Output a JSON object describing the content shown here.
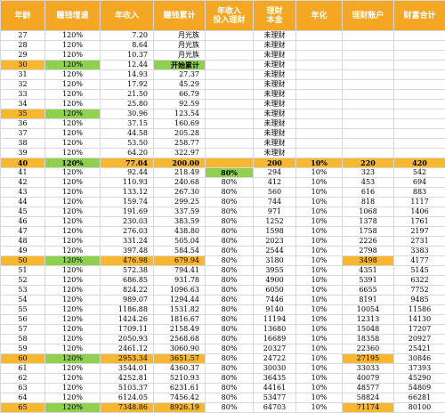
{
  "headers": {
    "age": "年龄",
    "growth": "赚钱增速",
    "income": "年收入",
    "cumulative": "赚钱累计",
    "invest_l1": "年收入",
    "invest_l2": "投入理财",
    "principal_l1": "理财",
    "principal_l2": "本金",
    "rate": "年化",
    "account": "理财账户",
    "wealth": "财富合计"
  },
  "rows": [
    {
      "age": "27",
      "growth": "120%",
      "income": "7.20",
      "cum": "月光族",
      "invest": "",
      "principal": "未理财",
      "rate": "",
      "account": "",
      "wealth": ""
    },
    {
      "age": "28",
      "growth": "120%",
      "income": "8.64",
      "cum": "月光族",
      "invest": "",
      "principal": "未理财",
      "rate": "",
      "account": "",
      "wealth": ""
    },
    {
      "age": "29",
      "growth": "120%",
      "income": "10.37",
      "cum": "月光族",
      "invest": "",
      "principal": "未理财",
      "rate": "",
      "account": "",
      "wealth": ""
    },
    {
      "age": "30",
      "growth": "120%",
      "income": "12.44",
      "cum": "开始累计",
      "invest": "",
      "principal": "未理财",
      "rate": "",
      "account": "",
      "wealth": ""
    },
    {
      "age": "31",
      "growth": "120%",
      "income": "14.93",
      "cum": "27.37",
      "invest": "",
      "principal": "未理财",
      "rate": "",
      "account": "",
      "wealth": ""
    },
    {
      "age": "32",
      "growth": "120%",
      "income": "17.92",
      "cum": "45.29",
      "invest": "",
      "principal": "未理财",
      "rate": "",
      "account": "",
      "wealth": ""
    },
    {
      "age": "33",
      "growth": "120%",
      "income": "21.50",
      "cum": "66.79",
      "invest": "",
      "principal": "未理财",
      "rate": "",
      "account": "",
      "wealth": ""
    },
    {
      "age": "34",
      "growth": "120%",
      "income": "25.80",
      "cum": "92.59",
      "invest": "",
      "principal": "未理财",
      "rate": "",
      "account": "",
      "wealth": ""
    },
    {
      "age": "35",
      "growth": "120%",
      "income": "30.96",
      "cum": "123.54",
      "invest": "",
      "principal": "未理财",
      "rate": "",
      "account": "",
      "wealth": ""
    },
    {
      "age": "36",
      "growth": "120%",
      "income": "37.15",
      "cum": "160.69",
      "invest": "",
      "principal": "未理财",
      "rate": "",
      "account": "",
      "wealth": ""
    },
    {
      "age": "37",
      "growth": "120%",
      "income": "44.58",
      "cum": "205.28",
      "invest": "",
      "principal": "未理财",
      "rate": "",
      "account": "",
      "wealth": ""
    },
    {
      "age": "38",
      "growth": "120%",
      "income": "53.50",
      "cum": "258.77",
      "invest": "",
      "principal": "未理财",
      "rate": "",
      "account": "",
      "wealth": ""
    },
    {
      "age": "39",
      "growth": "120%",
      "income": "64.20",
      "cum": "322.97",
      "invest": "",
      "principal": "未理财",
      "rate": "",
      "account": "",
      "wealth": ""
    },
    {
      "age": "40",
      "growth": "120%",
      "income": "77.04",
      "cum": "200.00",
      "invest": "",
      "principal": "200",
      "rate": "10%",
      "account": "220",
      "wealth": "420"
    },
    {
      "age": "41",
      "growth": "120%",
      "income": "92.44",
      "cum": "218.49",
      "invest": "80%",
      "principal": "294",
      "rate": "10%",
      "account": "323",
      "wealth": "542"
    },
    {
      "age": "42",
      "growth": "120%",
      "income": "110.93",
      "cum": "240.68",
      "invest": "80%",
      "principal": "412",
      "rate": "10%",
      "account": "453",
      "wealth": "694"
    },
    {
      "age": "43",
      "growth": "120%",
      "income": "133.12",
      "cum": "267.30",
      "invest": "80%",
      "principal": "560",
      "rate": "10%",
      "account": "616",
      "wealth": "883"
    },
    {
      "age": "44",
      "growth": "120%",
      "income": "159.74",
      "cum": "299.25",
      "invest": "80%",
      "principal": "744",
      "rate": "10%",
      "account": "818",
      "wealth": "1117"
    },
    {
      "age": "45",
      "growth": "120%",
      "income": "191.69",
      "cum": "337.59",
      "invest": "80%",
      "principal": "971",
      "rate": "10%",
      "account": "1068",
      "wealth": "1406"
    },
    {
      "age": "46",
      "growth": "120%",
      "income": "230.03",
      "cum": "383.59",
      "invest": "80%",
      "principal": "1252",
      "rate": "10%",
      "account": "1378",
      "wealth": "1761"
    },
    {
      "age": "47",
      "growth": "120%",
      "income": "276.03",
      "cum": "438.80",
      "invest": "80%",
      "principal": "1598",
      "rate": "10%",
      "account": "1758",
      "wealth": "2197"
    },
    {
      "age": "48",
      "growth": "120%",
      "income": "331.24",
      "cum": "505.04",
      "invest": "80%",
      "principal": "2023",
      "rate": "10%",
      "account": "2226",
      "wealth": "2731"
    },
    {
      "age": "49",
      "growth": "120%",
      "income": "397.48",
      "cum": "584.54",
      "invest": "80%",
      "principal": "2544",
      "rate": "10%",
      "account": "2798",
      "wealth": "3383"
    },
    {
      "age": "50",
      "growth": "120%",
      "income": "476.98",
      "cum": "679.94",
      "invest": "80%",
      "principal": "3180",
      "rate": "10%",
      "account": "3498",
      "wealth": "4177"
    },
    {
      "age": "51",
      "growth": "120%",
      "income": "572.38",
      "cum": "794.41",
      "invest": "80%",
      "principal": "3955",
      "rate": "10%",
      "account": "4351",
      "wealth": "5145"
    },
    {
      "age": "52",
      "growth": "120%",
      "income": "686.85",
      "cum": "931.78",
      "invest": "80%",
      "principal": "4900",
      "rate": "10%",
      "account": "5391",
      "wealth": "6322"
    },
    {
      "age": "53",
      "growth": "120%",
      "income": "824.22",
      "cum": "1096.63",
      "invest": "80%",
      "principal": "6050",
      "rate": "10%",
      "account": "6655",
      "wealth": "7752"
    },
    {
      "age": "54",
      "growth": "120%",
      "income": "989.07",
      "cum": "1294.44",
      "invest": "80%",
      "principal": "7446",
      "rate": "10%",
      "account": "8191",
      "wealth": "9485"
    },
    {
      "age": "55",
      "growth": "120%",
      "income": "1186.88",
      "cum": "1531.82",
      "invest": "80%",
      "principal": "9140",
      "rate": "10%",
      "account": "10054",
      "wealth": "11586"
    },
    {
      "age": "56",
      "growth": "120%",
      "income": "1424.26",
      "cum": "1816.67",
      "invest": "80%",
      "principal": "11194",
      "rate": "10%",
      "account": "12313",
      "wealth": "14130"
    },
    {
      "age": "57",
      "growth": "120%",
      "income": "1709.11",
      "cum": "2158.49",
      "invest": "80%",
      "principal": "13680",
      "rate": "10%",
      "account": "15048",
      "wealth": "17207"
    },
    {
      "age": "58",
      "growth": "120%",
      "income": "2050.93",
      "cum": "2568.68",
      "invest": "80%",
      "principal": "16689",
      "rate": "10%",
      "account": "18358",
      "wealth": "20927"
    },
    {
      "age": "59",
      "growth": "120%",
      "income": "2461.12",
      "cum": "3060.90",
      "invest": "80%",
      "principal": "20327",
      "rate": "10%",
      "account": "22360",
      "wealth": "25421"
    },
    {
      "age": "60",
      "growth": "120%",
      "income": "2953.34",
      "cum": "3651.57",
      "invest": "80%",
      "principal": "24722",
      "rate": "10%",
      "account": "27195",
      "wealth": "30846"
    },
    {
      "age": "61",
      "growth": "120%",
      "income": "3544.01",
      "cum": "4360.37",
      "invest": "80%",
      "principal": "30030",
      "rate": "10%",
      "account": "33033",
      "wealth": "37393"
    },
    {
      "age": "62",
      "growth": "120%",
      "income": "4252.81",
      "cum": "5210.93",
      "invest": "80%",
      "principal": "36435",
      "rate": "10%",
      "account": "40079",
      "wealth": "45290"
    },
    {
      "age": "63",
      "growth": "120%",
      "income": "5103.37",
      "cum": "6231.61",
      "invest": "80%",
      "principal": "44161",
      "rate": "10%",
      "account": "48577",
      "wealth": "54809"
    },
    {
      "age": "64",
      "growth": "120%",
      "income": "6124.05",
      "cum": "7456.42",
      "invest": "80%",
      "principal": "53477",
      "rate": "10%",
      "account": "58824",
      "wealth": "66281"
    },
    {
      "age": "65",
      "growth": "120%",
      "income": "7348.86",
      "cum": "8926.19",
      "invest": "80%",
      "principal": "64703",
      "rate": "10%",
      "account": "71174",
      "wealth": "80100"
    }
  ],
  "colors": {
    "header_bg": "#f5a623",
    "highlight_orange": "#f7b731",
    "highlight_green": "#8fd14f",
    "grid": "#d9d9d9"
  }
}
